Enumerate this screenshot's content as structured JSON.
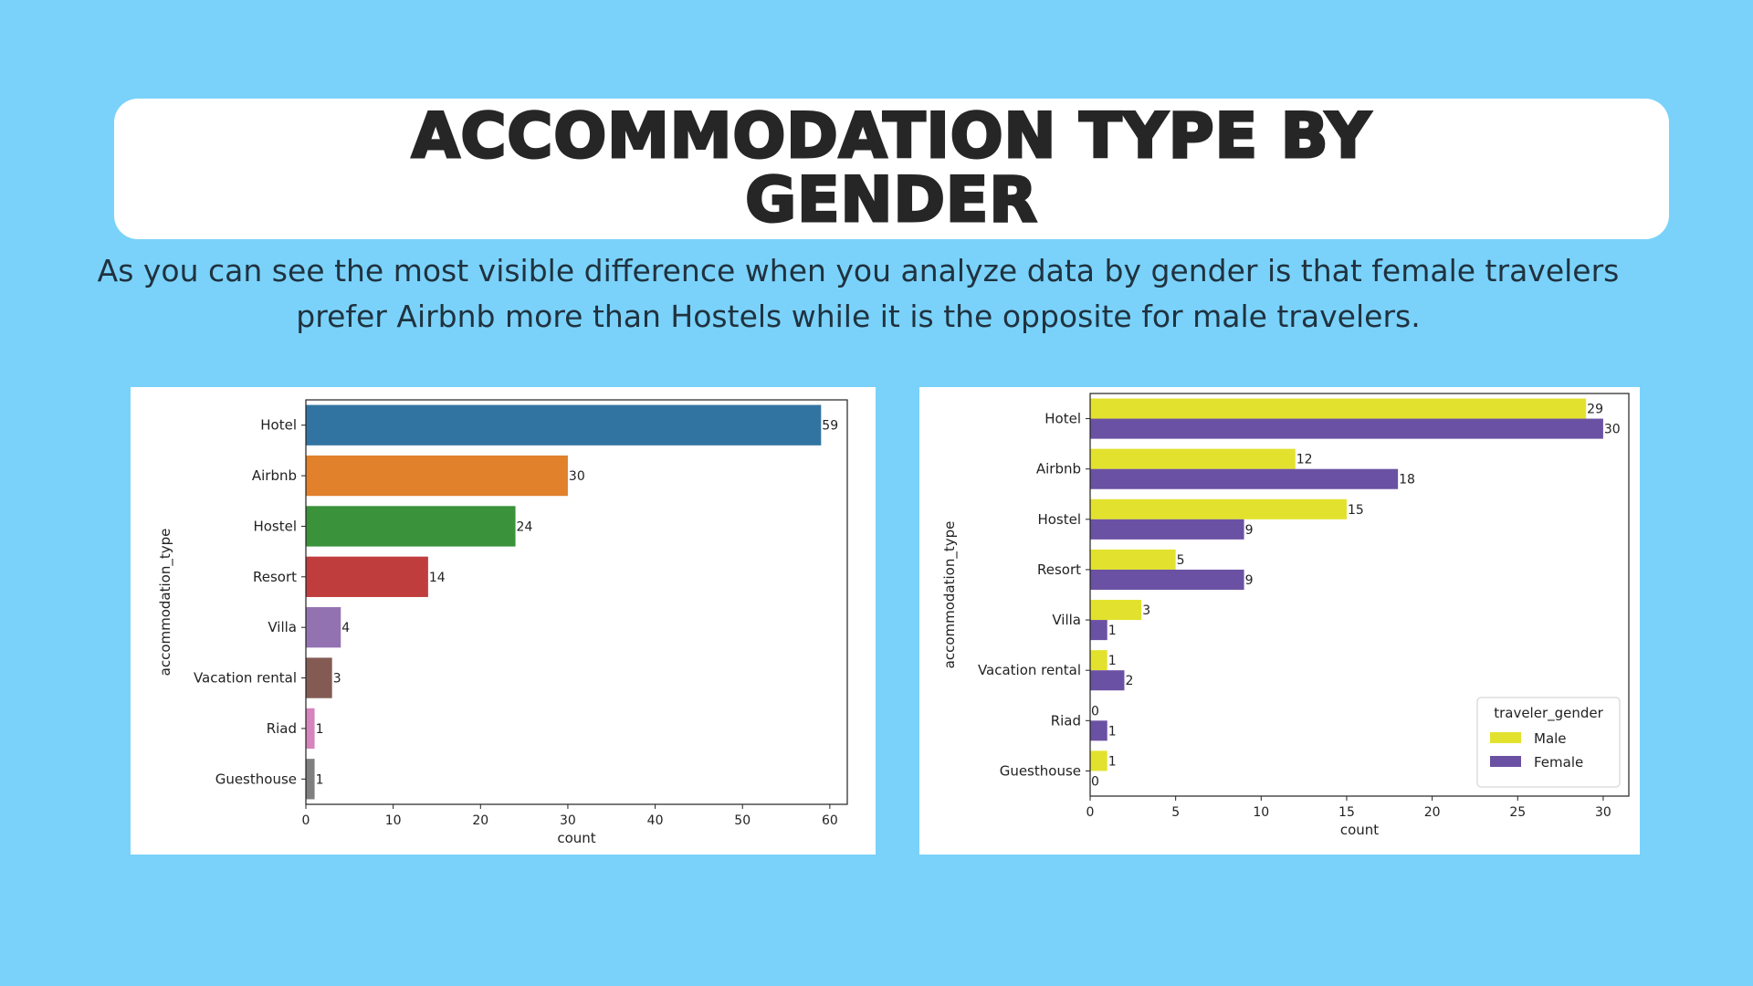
{
  "header": {
    "title": "ACCOMMODATION TYPE BY GENDER"
  },
  "summary": {
    "text": "As you can see the most visible difference when you analyze data by gender is that female travelers prefer Airbnb more than Hostels while it is the opposite for male travelers."
  },
  "chart_data": [
    {
      "type": "bar",
      "orientation": "horizontal",
      "categories": [
        "Hotel",
        "Airbnb",
        "Hostel",
        "Resort",
        "Villa",
        "Vacation rental",
        "Riad",
        "Guesthouse"
      ],
      "values": [
        59,
        30,
        24,
        14,
        4,
        3,
        1,
        1
      ],
      "colors": [
        "#3274A1",
        "#E1812C",
        "#3A923A",
        "#C03D3E",
        "#9372B2",
        "#845B53",
        "#D684BD",
        "#7F7F7F"
      ],
      "xlabel": "count",
      "ylabel": "accommodation_type",
      "xlim": [
        0,
        62
      ],
      "xticks": [
        0,
        10,
        20,
        30,
        40,
        50,
        60
      ],
      "grid": false
    },
    {
      "type": "bar",
      "orientation": "horizontal",
      "categories": [
        "Hotel",
        "Airbnb",
        "Hostel",
        "Resort",
        "Villa",
        "Vacation rental",
        "Riad",
        "Guesthouse"
      ],
      "series": [
        {
          "name": "Male",
          "values": [
            29,
            12,
            15,
            5,
            3,
            1,
            0,
            1
          ],
          "color": "#E2E22E"
        },
        {
          "name": "Female",
          "values": [
            30,
            18,
            9,
            9,
            1,
            2,
            1,
            0
          ],
          "color": "#6B51A3"
        }
      ],
      "xlabel": "count",
      "ylabel": "accommodation_type",
      "xlim": [
        0,
        31.5
      ],
      "xticks": [
        0,
        5,
        10,
        15,
        20,
        25,
        30
      ],
      "legend_title": "traveler_gender",
      "legend_position": "lower right",
      "grid": false
    }
  ]
}
